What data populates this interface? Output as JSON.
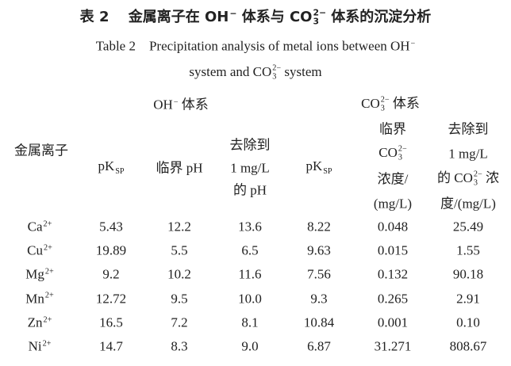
{
  "title_cn": [
    {
      "text": "表 2　 金属离子在 OH",
      "sup": "−"
    },
    {
      "text": " 体系与 CO",
      "sup": "2−",
      "sub": "3"
    },
    {
      "text": " 体系的沉淀分析"
    }
  ],
  "title_en": [
    [
      {
        "text": "Table 2　Precipitation analysis of metal ions between OH",
        "sup": "−"
      }
    ],
    [
      {
        "text": "system and CO",
        "sup": "2−",
        "sub": "3"
      },
      {
        "text": " system"
      }
    ]
  ],
  "table": {
    "row_header": "金属离子",
    "group_headers": [
      [
        {
          "text": "OH",
          "sup": "−"
        },
        {
          "text": " 体系"
        }
      ],
      [
        {
          "text": "CO",
          "sup": "2−",
          "sub": "3"
        },
        {
          "text": " 体系"
        }
      ]
    ],
    "column_headers": [
      [
        [
          {
            "text": "pK",
            "sub": "SP"
          }
        ]
      ],
      [
        [
          {
            "text": "临界 pH"
          }
        ]
      ],
      [
        [
          {
            "text": "去除到"
          }
        ],
        [
          {
            "text": "1 mg/L"
          }
        ],
        [
          {
            "text": "的 pH"
          }
        ]
      ],
      [
        [
          {
            "text": "pK",
            "sub": "SP"
          }
        ]
      ],
      [
        [
          {
            "text": "临界"
          }
        ],
        [
          {
            "text": "CO",
            "sup": "2−",
            "sub": "3"
          }
        ],
        [
          {
            "text": "浓度/"
          }
        ],
        [
          {
            "text": "(mg/L)"
          }
        ]
      ],
      [
        [
          {
            "text": "去除到"
          }
        ],
        [
          {
            "text": "1 mg/L"
          }
        ],
        [
          {
            "text": "的 CO",
            "sup": "2−",
            "sub": "3"
          },
          {
            "text": " 浓"
          }
        ],
        [
          {
            "text": "度/(mg/L)"
          }
        ]
      ]
    ],
    "rows": [
      {
        "ion": [
          {
            "text": "Ca",
            "sup": "2+"
          }
        ],
        "cells": [
          "5.43",
          "12.2",
          "13.6",
          "8.22",
          "0.048",
          "25.49"
        ]
      },
      {
        "ion": [
          {
            "text": "Cu",
            "sup": "2+"
          }
        ],
        "cells": [
          "19.89",
          "5.5",
          "6.5",
          "9.63",
          "0.015",
          "1.55"
        ]
      },
      {
        "ion": [
          {
            "text": "Mg",
            "sup": "2+"
          }
        ],
        "cells": [
          "9.2",
          "10.2",
          "11.6",
          "7.56",
          "0.132",
          "90.18"
        ]
      },
      {
        "ion": [
          {
            "text": "Mn",
            "sup": "2+"
          }
        ],
        "cells": [
          "12.72",
          "9.5",
          "10.0",
          "9.3",
          "0.265",
          "2.91"
        ]
      },
      {
        "ion": [
          {
            "text": "Zn",
            "sup": "2+"
          }
        ],
        "cells": [
          "16.5",
          "7.2",
          "8.1",
          "10.84",
          "0.001",
          "0.10"
        ]
      },
      {
        "ion": [
          {
            "text": "Ni",
            "sup": "2+"
          }
        ],
        "cells": [
          "14.7",
          "8.3",
          "9.0",
          "6.87",
          "31.271",
          "808.67"
        ]
      }
    ]
  }
}
